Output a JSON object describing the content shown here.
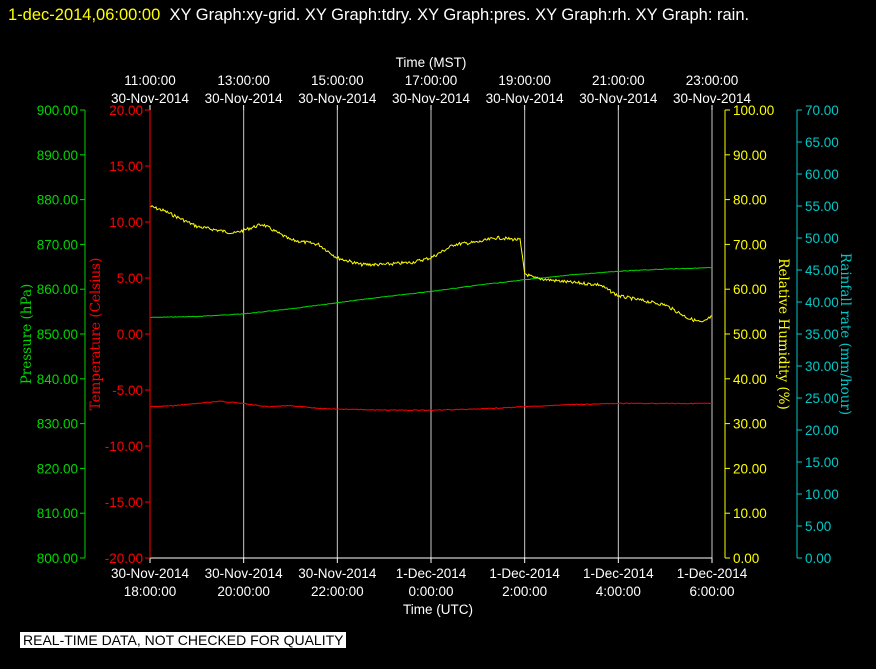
{
  "header": {
    "timestamp": "1-dec-2014,06:00:00",
    "graphs": "XY Graph:xy-grid.  XY Graph:tdry.  XY Graph:pres.  XY Graph:rh.  XY Graph: rain."
  },
  "notice": "REAL-TIME DATA, NOT CHECKED FOR QUALITY",
  "colors": {
    "background": "#000000",
    "grid": "#c8c8c8",
    "pressure": "#00d800",
    "temperature": "#ff0000",
    "humidity": "#ffff00",
    "rain": "#00c8c8"
  },
  "chart_data": {
    "type": "line",
    "top_axis": {
      "label": "Time (MST)",
      "ticks": [
        [
          "11:00:00",
          "30-Nov-2014"
        ],
        [
          "13:00:00",
          "30-Nov-2014"
        ],
        [
          "15:00:00",
          "30-Nov-2014"
        ],
        [
          "17:00:00",
          "30-Nov-2014"
        ],
        [
          "19:00:00",
          "30-Nov-2014"
        ],
        [
          "21:00:00",
          "30-Nov-2014"
        ],
        [
          "23:00:00",
          "30-Nov-2014"
        ]
      ]
    },
    "bottom_axis": {
      "label": "Time (UTC)",
      "xlim": [
        "30-Nov-2014 18:00:00",
        "1-Dec-2014 6:00:00"
      ],
      "ticks": [
        [
          "30-Nov-2014",
          "18:00:00"
        ],
        [
          "30-Nov-2014",
          "20:00:00"
        ],
        [
          "30-Nov-2014",
          "22:00:00"
        ],
        [
          "1-Dec-2014",
          "0:00:00"
        ],
        [
          "1-Dec-2014",
          "2:00:00"
        ],
        [
          "1-Dec-2014",
          "4:00:00"
        ],
        [
          "1-Dec-2014",
          "6:00:00"
        ]
      ]
    },
    "y_axes": [
      {
        "key": "pressure",
        "label": "Pressure (hPa)",
        "ylim": [
          800,
          900
        ],
        "ticks": [
          "900.00",
          "890.00",
          "880.00",
          "870.00",
          "860.00",
          "850.00",
          "840.00",
          "830.00",
          "820.00",
          "810.00",
          "800.00"
        ]
      },
      {
        "key": "temperature",
        "label": "Temperature (Celsius)",
        "ylim": [
          -20,
          20
        ],
        "ticks": [
          "20.00",
          "15.00",
          "10.00",
          "5.00",
          "0.00",
          "-5.00",
          "-10.00",
          "-15.00",
          "-20.00"
        ]
      },
      {
        "key": "humidity",
        "label": "Relative Humidity (%)",
        "ylim": [
          0,
          100
        ],
        "ticks": [
          "100.00",
          "90.00",
          "80.00",
          "70.00",
          "60.00",
          "50.00",
          "40.00",
          "30.00",
          "20.00",
          "10.00",
          "0.00"
        ]
      },
      {
        "key": "rain",
        "label": "Rainfall rate (mm/hour)",
        "ylim": [
          0,
          70
        ],
        "ticks": [
          "70.00",
          "65.00",
          "60.00",
          "55.00",
          "50.00",
          "45.00",
          "40.00",
          "35.00",
          "30.00",
          "25.00",
          "20.00",
          "15.00",
          "10.00",
          "5.00",
          "0.00"
        ]
      }
    ],
    "x_hours_since_start_note": "x in series below = hours after 30-Nov-2014 18:00:00 UTC",
    "series": [
      {
        "key": "temperature",
        "axis": "temperature",
        "x": [
          0,
          0.5,
          1,
          1.5,
          2,
          2.5,
          3,
          3.5,
          4,
          5,
          6,
          7,
          8,
          9,
          10,
          11,
          12
        ],
        "y": [
          -6.5,
          -6.4,
          -6.2,
          -6.0,
          -6.2,
          -6.5,
          -6.4,
          -6.6,
          -6.7,
          -6.8,
          -6.8,
          -6.7,
          -6.5,
          -6.3,
          -6.2,
          -6.2,
          -6.2
        ]
      },
      {
        "key": "pressure",
        "axis": "pressure",
        "x": [
          0,
          1,
          2,
          3,
          4,
          5,
          6,
          7,
          8,
          9,
          10,
          11,
          12
        ],
        "y": [
          853.7,
          853.9,
          854.5,
          855.6,
          857.0,
          858.3,
          859.5,
          860.9,
          862.1,
          863.2,
          864.0,
          864.5,
          864.8
        ]
      },
      {
        "key": "humidity",
        "axis": "humidity",
        "x": [
          0,
          0.3,
          1,
          1.8,
          2.4,
          3,
          3.6,
          4,
          4.5,
          5,
          5.6,
          6,
          6.5,
          7,
          7.4,
          7.9,
          8.0,
          8.2,
          8.6,
          9,
          9.6,
          10,
          10.5,
          11,
          11.5,
          11.8,
          12
        ],
        "y": [
          78.5,
          77.5,
          74.0,
          72.5,
          74.5,
          71.0,
          70.0,
          67.0,
          65.5,
          65.5,
          66.0,
          67.0,
          70.0,
          70.5,
          71.5,
          71.0,
          63.5,
          62.5,
          62.0,
          61.5,
          61.0,
          58.5,
          57.5,
          56.5,
          53.5,
          52.5,
          54.0
        ]
      }
    ],
    "rain_series_note": "no rainfall trace visible"
  }
}
